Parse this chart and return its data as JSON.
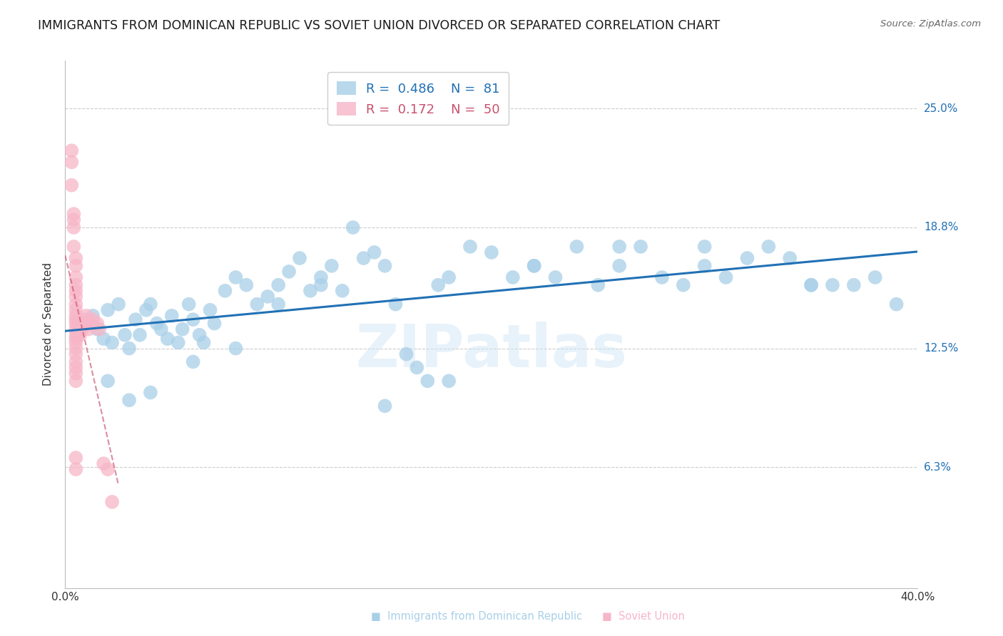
{
  "title": "IMMIGRANTS FROM DOMINICAN REPUBLIC VS SOVIET UNION DIVORCED OR SEPARATED CORRELATION CHART",
  "source": "Source: ZipAtlas.com",
  "ylabel": "Divorced or Separated",
  "ytick_labels": [
    "25.0%",
    "18.8%",
    "12.5%",
    "6.3%"
  ],
  "ytick_values": [
    0.25,
    0.188,
    0.125,
    0.063
  ],
  "xlim": [
    0.0,
    0.4
  ],
  "ylim": [
    0.0,
    0.275
  ],
  "legend_blue_R": "0.486",
  "legend_blue_N": "81",
  "legend_pink_R": "0.172",
  "legend_pink_N": "50",
  "blue_color": "#a8cfe8",
  "pink_color": "#f7b6c8",
  "blue_line_color": "#2171b5",
  "pink_line_color": "#c9506e",
  "watermark": "ZIPatlas",
  "blue_scatter_x": [
    0.01,
    0.013,
    0.015,
    0.018,
    0.02,
    0.022,
    0.025,
    0.028,
    0.03,
    0.033,
    0.035,
    0.038,
    0.04,
    0.043,
    0.045,
    0.048,
    0.05,
    0.053,
    0.055,
    0.058,
    0.06,
    0.063,
    0.065,
    0.068,
    0.07,
    0.075,
    0.08,
    0.085,
    0.09,
    0.095,
    0.1,
    0.105,
    0.11,
    0.115,
    0.12,
    0.125,
    0.13,
    0.135,
    0.14,
    0.145,
    0.15,
    0.155,
    0.16,
    0.165,
    0.17,
    0.175,
    0.18,
    0.19,
    0.2,
    0.21,
    0.22,
    0.23,
    0.24,
    0.25,
    0.26,
    0.27,
    0.28,
    0.29,
    0.3,
    0.31,
    0.32,
    0.33,
    0.34,
    0.35,
    0.36,
    0.37,
    0.38,
    0.39,
    0.02,
    0.03,
    0.04,
    0.06,
    0.08,
    0.1,
    0.12,
    0.15,
    0.18,
    0.22,
    0.26,
    0.3,
    0.35
  ],
  "blue_scatter_y": [
    0.138,
    0.142,
    0.135,
    0.13,
    0.145,
    0.128,
    0.148,
    0.132,
    0.125,
    0.14,
    0.132,
    0.145,
    0.148,
    0.138,
    0.135,
    0.13,
    0.142,
    0.128,
    0.135,
    0.148,
    0.14,
    0.132,
    0.128,
    0.145,
    0.138,
    0.155,
    0.162,
    0.158,
    0.148,
    0.152,
    0.158,
    0.165,
    0.172,
    0.155,
    0.162,
    0.168,
    0.155,
    0.188,
    0.172,
    0.175,
    0.168,
    0.148,
    0.122,
    0.115,
    0.108,
    0.158,
    0.162,
    0.178,
    0.175,
    0.162,
    0.168,
    0.162,
    0.178,
    0.158,
    0.178,
    0.178,
    0.162,
    0.158,
    0.178,
    0.162,
    0.172,
    0.178,
    0.172,
    0.158,
    0.158,
    0.158,
    0.162,
    0.148,
    0.108,
    0.098,
    0.102,
    0.118,
    0.125,
    0.148,
    0.158,
    0.095,
    0.108,
    0.168,
    0.168,
    0.168,
    0.158
  ],
  "pink_scatter_x": [
    0.003,
    0.003,
    0.003,
    0.004,
    0.004,
    0.004,
    0.004,
    0.005,
    0.005,
    0.005,
    0.005,
    0.005,
    0.005,
    0.005,
    0.005,
    0.005,
    0.005,
    0.005,
    0.005,
    0.005,
    0.005,
    0.005,
    0.005,
    0.005,
    0.005,
    0.005,
    0.005,
    0.005,
    0.005,
    0.005,
    0.006,
    0.006,
    0.006,
    0.007,
    0.007,
    0.007,
    0.008,
    0.008,
    0.009,
    0.009,
    0.01,
    0.01,
    0.011,
    0.012,
    0.013,
    0.015,
    0.016,
    0.018,
    0.02,
    0.022
  ],
  "pink_scatter_y": [
    0.228,
    0.222,
    0.21,
    0.195,
    0.192,
    0.188,
    0.178,
    0.172,
    0.168,
    0.162,
    0.158,
    0.155,
    0.152,
    0.148,
    0.145,
    0.142,
    0.14,
    0.138,
    0.135,
    0.132,
    0.13,
    0.128,
    0.125,
    0.122,
    0.118,
    0.115,
    0.112,
    0.108,
    0.068,
    0.062,
    0.138,
    0.135,
    0.132,
    0.138,
    0.135,
    0.132,
    0.138,
    0.135,
    0.14,
    0.138,
    0.142,
    0.138,
    0.135,
    0.138,
    0.14,
    0.138,
    0.135,
    0.065,
    0.062,
    0.045
  ],
  "grid_color": "#cccccc",
  "background_color": "#ffffff",
  "title_fontsize": 12.5,
  "axis_label_fontsize": 11,
  "tick_fontsize": 11,
  "legend_fontsize": 13
}
